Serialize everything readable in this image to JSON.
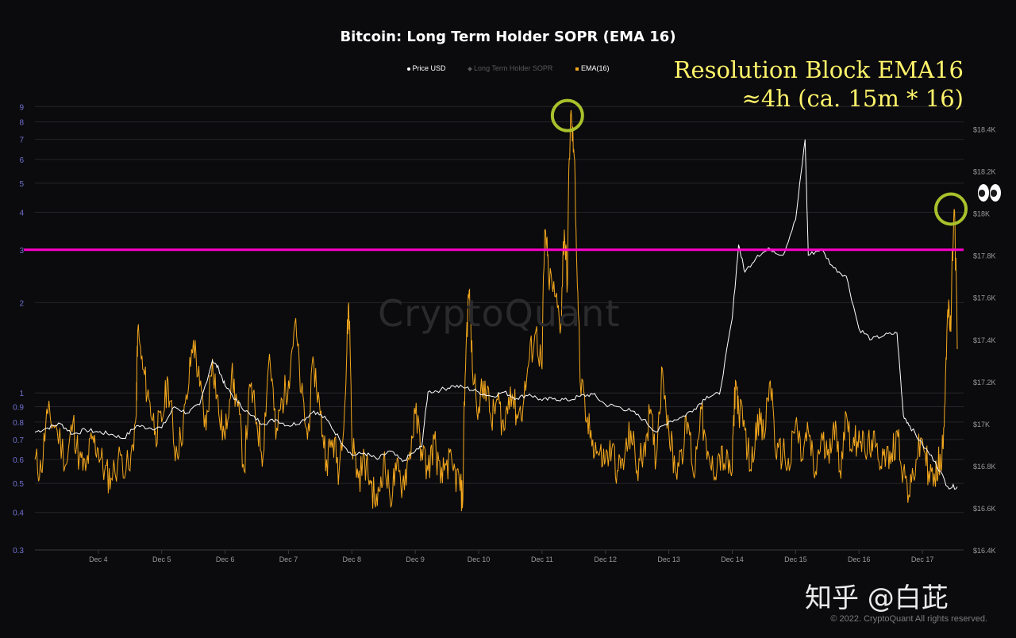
{
  "chart_data": {
    "type": "line",
    "title": "Bitcoin: Long Term Holder SOPR (EMA 16)",
    "legend": [
      {
        "label": "Price USD",
        "color": "#ffffff",
        "marker": "dot"
      },
      {
        "label": "Long Term Holder SOPR",
        "color": "#5a5a5a",
        "marker": "diamond"
      },
      {
        "label": "EMA(16)",
        "color": "#f3a71d",
        "marker": "square"
      }
    ],
    "x_tick_labels": [
      "Dec 4",
      "Dec 5",
      "Dec 6",
      "Dec 7",
      "Dec 8",
      "Dec 9",
      "Dec 10",
      "Dec 11",
      "Dec 12",
      "Dec 13",
      "Dec 14",
      "Dec 15",
      "Dec 16",
      "Dec 17"
    ],
    "xlim": [
      3.0,
      17.65
    ],
    "y_left": {
      "scale": "log",
      "ticks": [
        "0.3",
        "0.4",
        "0.5",
        "0.6",
        "0.7",
        "0.8",
        "0.9",
        "1",
        "2",
        "3",
        "4",
        "5",
        "6",
        "7",
        "8",
        "9"
      ],
      "ylim": [
        0.3,
        10
      ]
    },
    "y_right": {
      "ticks": [
        "$16.4K",
        "$16.6K",
        "$16.8K",
        "$17K",
        "$17.2K",
        "$17.4K",
        "$17.6K",
        "$17.8K",
        "$18K",
        "$18.2K",
        "$18.4K"
      ],
      "ylim": [
        16400,
        18500
      ]
    },
    "reference_line": {
      "y": 3,
      "axis": "left",
      "color": "#ff00cc"
    },
    "highlight_circles": [
      {
        "x": 11.4,
        "y": 8.4,
        "axis": "left",
        "color": "#a9c12b"
      },
      {
        "x": 17.45,
        "y": 4.1,
        "axis": "left",
        "color": "#a9c12b"
      }
    ],
    "series": [
      {
        "name": "Price USD",
        "axis": "right",
        "color": "#ffffff",
        "points": [
          [
            3.0,
            16960
          ],
          [
            3.2,
            16980
          ],
          [
            3.4,
            17000
          ],
          [
            3.6,
            16950
          ],
          [
            3.8,
            16970
          ],
          [
            4.0,
            16960
          ],
          [
            4.2,
            16950
          ],
          [
            4.4,
            16930
          ],
          [
            4.6,
            16990
          ],
          [
            4.8,
            16980
          ],
          [
            5.0,
            16980
          ],
          [
            5.2,
            17080
          ],
          [
            5.4,
            17050
          ],
          [
            5.6,
            17090
          ],
          [
            5.8,
            17300
          ],
          [
            5.9,
            17260
          ],
          [
            6.0,
            17180
          ],
          [
            6.2,
            17100
          ],
          [
            6.4,
            17040
          ],
          [
            6.6,
            17000
          ],
          [
            6.8,
            17020
          ],
          [
            7.0,
            16990
          ],
          [
            7.2,
            17010
          ],
          [
            7.4,
            17060
          ],
          [
            7.6,
            17020
          ],
          [
            7.8,
            16930
          ],
          [
            8.0,
            16850
          ],
          [
            8.2,
            16860
          ],
          [
            8.4,
            16830
          ],
          [
            8.6,
            16870
          ],
          [
            8.8,
            16820
          ],
          [
            9.0,
            16870
          ],
          [
            9.1,
            16890
          ],
          [
            9.2,
            17150
          ],
          [
            9.4,
            17160
          ],
          [
            9.6,
            17180
          ],
          [
            9.8,
            17170
          ],
          [
            10.0,
            17150
          ],
          [
            10.2,
            17130
          ],
          [
            10.4,
            17150
          ],
          [
            10.6,
            17120
          ],
          [
            10.8,
            17140
          ],
          [
            11.0,
            17110
          ],
          [
            11.2,
            17120
          ],
          [
            11.4,
            17110
          ],
          [
            11.6,
            17130
          ],
          [
            11.8,
            17140
          ],
          [
            12.0,
            17090
          ],
          [
            12.2,
            17080
          ],
          [
            12.4,
            17060
          ],
          [
            12.6,
            17020
          ],
          [
            12.8,
            16960
          ],
          [
            13.0,
            17010
          ],
          [
            13.2,
            17030
          ],
          [
            13.4,
            17070
          ],
          [
            13.6,
            17130
          ],
          [
            13.8,
            17140
          ],
          [
            14.0,
            17500
          ],
          [
            14.1,
            17850
          ],
          [
            14.2,
            17720
          ],
          [
            14.4,
            17800
          ],
          [
            14.6,
            17830
          ],
          [
            14.8,
            17800
          ],
          [
            15.0,
            17970
          ],
          [
            15.15,
            18350
          ],
          [
            15.2,
            17800
          ],
          [
            15.4,
            17830
          ],
          [
            15.6,
            17740
          ],
          [
            15.8,
            17700
          ],
          [
            16.0,
            17450
          ],
          [
            16.2,
            17400
          ],
          [
            16.4,
            17420
          ],
          [
            16.6,
            17430
          ],
          [
            16.7,
            17040
          ],
          [
            16.8,
            16990
          ],
          [
            17.0,
            16900
          ],
          [
            17.2,
            16820
          ],
          [
            17.4,
            16700
          ],
          [
            17.55,
            16700
          ]
        ]
      },
      {
        "name": "EMA(16)",
        "axis": "left",
        "color": "#f3a71d",
        "points": [
          [
            3.0,
            0.6
          ],
          [
            3.1,
            0.55
          ],
          [
            3.2,
            0.85
          ],
          [
            3.35,
            0.75
          ],
          [
            3.5,
            0.58
          ],
          [
            3.6,
            0.8
          ],
          [
            3.7,
            0.6
          ],
          [
            3.8,
            0.55
          ],
          [
            3.9,
            0.7
          ],
          [
            4.0,
            0.65
          ],
          [
            4.1,
            0.55
          ],
          [
            4.2,
            0.52
          ],
          [
            4.35,
            0.62
          ],
          [
            4.5,
            0.55
          ],
          [
            4.6,
            0.85
          ],
          [
            4.62,
            1.6
          ],
          [
            4.7,
            1.2
          ],
          [
            4.8,
            0.95
          ],
          [
            4.9,
            0.75
          ],
          [
            5.0,
            0.8
          ],
          [
            5.1,
            1.1
          ],
          [
            5.2,
            0.65
          ],
          [
            5.3,
            0.7
          ],
          [
            5.4,
            0.95
          ],
          [
            5.5,
            1.5
          ],
          [
            5.6,
            1.05
          ],
          [
            5.7,
            0.75
          ],
          [
            5.8,
            1.3
          ],
          [
            5.9,
            0.85
          ],
          [
            6.0,
            0.7
          ],
          [
            6.1,
            1.15
          ],
          [
            6.2,
            0.9
          ],
          [
            6.3,
            0.55
          ],
          [
            6.4,
            1.05
          ],
          [
            6.5,
            0.8
          ],
          [
            6.6,
            0.62
          ],
          [
            6.7,
            1.35
          ],
          [
            6.8,
            0.7
          ],
          [
            6.9,
            0.95
          ],
          [
            7.0,
            1.1
          ],
          [
            7.1,
            1.7
          ],
          [
            7.2,
            1.0
          ],
          [
            7.3,
            0.7
          ],
          [
            7.4,
            1.25
          ],
          [
            7.5,
            0.85
          ],
          [
            7.6,
            0.6
          ],
          [
            7.7,
            0.7
          ],
          [
            7.8,
            0.55
          ],
          [
            7.9,
            1.0
          ],
          [
            7.95,
            2.0
          ],
          [
            8.0,
            0.7
          ],
          [
            8.1,
            0.52
          ],
          [
            8.2,
            0.6
          ],
          [
            8.3,
            0.5
          ],
          [
            8.4,
            0.42
          ],
          [
            8.5,
            0.6
          ],
          [
            8.6,
            0.45
          ],
          [
            8.7,
            0.55
          ],
          [
            8.8,
            0.5
          ],
          [
            8.9,
            0.6
          ],
          [
            9.0,
            0.85
          ],
          [
            9.1,
            0.65
          ],
          [
            9.2,
            0.55
          ],
          [
            9.3,
            0.7
          ],
          [
            9.4,
            0.5
          ],
          [
            9.5,
            0.6
          ],
          [
            9.6,
            0.55
          ],
          [
            9.7,
            0.5
          ],
          [
            9.75,
            0.44
          ],
          [
            9.8,
            1.4
          ],
          [
            9.85,
            2.2
          ],
          [
            9.9,
            1.2
          ],
          [
            10.0,
            0.9
          ],
          [
            10.1,
            1.1
          ],
          [
            10.2,
            0.8
          ],
          [
            10.3,
            0.95
          ],
          [
            10.4,
            0.75
          ],
          [
            10.5,
            1.05
          ],
          [
            10.6,
            0.85
          ],
          [
            10.7,
            0.9
          ],
          [
            10.8,
            1.3
          ],
          [
            10.9,
            1.6
          ],
          [
            11.0,
            1.2
          ],
          [
            11.05,
            3.5
          ],
          [
            11.1,
            2.5
          ],
          [
            11.2,
            2.1
          ],
          [
            11.3,
            1.7
          ],
          [
            11.35,
            3.5
          ],
          [
            11.4,
            2.3
          ],
          [
            11.45,
            8.4
          ],
          [
            11.5,
            6.5
          ],
          [
            11.55,
            2.6
          ],
          [
            11.6,
            1.1
          ],
          [
            11.7,
            0.8
          ],
          [
            11.8,
            0.7
          ],
          [
            11.9,
            0.62
          ],
          [
            12.0,
            0.6
          ],
          [
            12.1,
            0.65
          ],
          [
            12.2,
            0.55
          ],
          [
            12.3,
            0.6
          ],
          [
            12.4,
            0.75
          ],
          [
            12.5,
            0.55
          ],
          [
            12.6,
            0.65
          ],
          [
            12.7,
            0.85
          ],
          [
            12.8,
            0.6
          ],
          [
            12.9,
            1.2
          ],
          [
            13.0,
            0.75
          ],
          [
            13.1,
            0.55
          ],
          [
            13.2,
            0.65
          ],
          [
            13.3,
            0.8
          ],
          [
            13.4,
            0.52
          ],
          [
            13.5,
            0.9
          ],
          [
            13.6,
            0.6
          ],
          [
            13.7,
            0.55
          ],
          [
            13.8,
            0.62
          ],
          [
            13.9,
            0.58
          ],
          [
            14.0,
            0.55
          ],
          [
            14.05,
            1.1
          ],
          [
            14.1,
            0.9
          ],
          [
            14.2,
            0.75
          ],
          [
            14.3,
            0.55
          ],
          [
            14.4,
            0.85
          ],
          [
            14.5,
            0.7
          ],
          [
            14.6,
            1.1
          ],
          [
            14.7,
            0.6
          ],
          [
            14.8,
            0.65
          ],
          [
            14.9,
            0.55
          ],
          [
            15.0,
            0.8
          ],
          [
            15.1,
            0.6
          ],
          [
            15.2,
            0.75
          ],
          [
            15.3,
            0.52
          ],
          [
            15.4,
            0.7
          ],
          [
            15.5,
            0.62
          ],
          [
            15.6,
            0.8
          ],
          [
            15.7,
            0.55
          ],
          [
            15.8,
            0.85
          ],
          [
            15.9,
            0.65
          ],
          [
            16.0,
            0.75
          ],
          [
            16.1,
            0.62
          ],
          [
            16.2,
            0.7
          ],
          [
            16.3,
            0.6
          ],
          [
            16.4,
            0.65
          ],
          [
            16.5,
            0.58
          ],
          [
            16.6,
            0.75
          ],
          [
            16.7,
            0.55
          ],
          [
            16.8,
            0.45
          ],
          [
            16.9,
            0.6
          ],
          [
            17.0,
            0.7
          ],
          [
            17.1,
            0.55
          ],
          [
            17.2,
            0.5
          ],
          [
            17.25,
            0.6
          ],
          [
            17.3,
            0.55
          ],
          [
            17.35,
            0.9
          ],
          [
            17.4,
            1.9
          ],
          [
            17.45,
            1.6
          ],
          [
            17.5,
            4.1
          ],
          [
            17.55,
            1.4
          ]
        ]
      }
    ]
  },
  "annotation": {
    "line1": "Resolution Block EMA16",
    "line2": "≈4h (ca. 15m * 16)"
  },
  "eyes_emoji": "👀",
  "watermark": "CryptoQuant",
  "overlay_watermark": "知乎 @白茈",
  "copyright": "© 2022. CryptoQuant All rights reserved.",
  "colors": {
    "background": "#0b0b0d",
    "grid": "#26262a",
    "left_tick": "#7070d0",
    "right_tick": "#9a9a9a"
  }
}
